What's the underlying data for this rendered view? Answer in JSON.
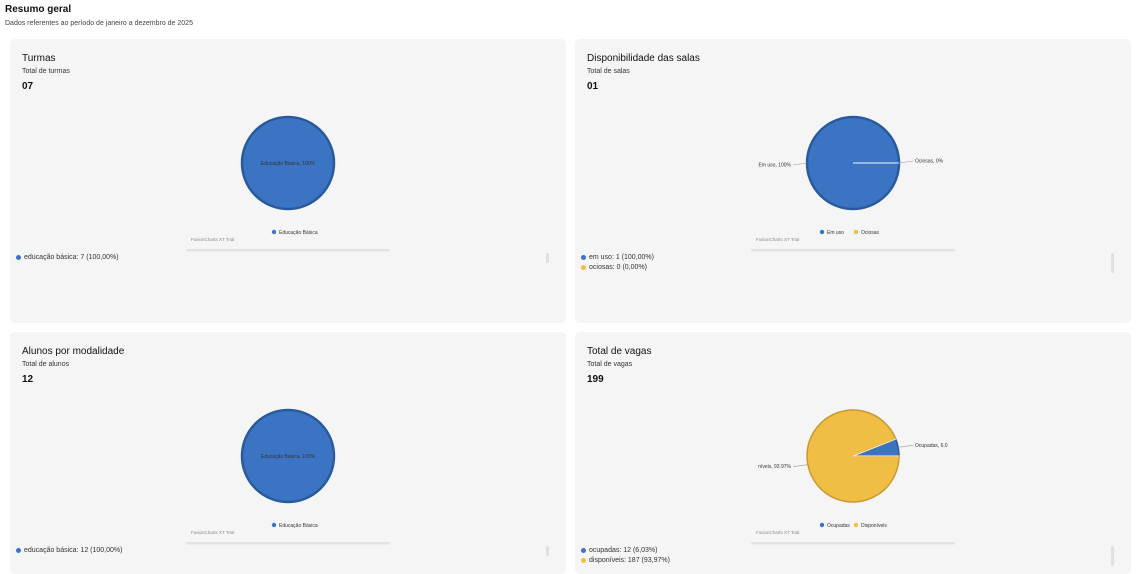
{
  "page": {
    "title": "Resumo geral",
    "subtitle": "Dados referentes ao período de janeiro a dezembro de 2025"
  },
  "colors": {
    "blue": "#3b74c3",
    "blue_dark": "#2a5a9e",
    "yellow": "#f0bd45",
    "yellow_dark": "#c79a30",
    "card_bg": "#f5f5f5"
  },
  "cards": [
    {
      "title": "Turmas",
      "subtitle": "Total de turmas",
      "value": "07",
      "chart": {
        "slices": [
          {
            "name": "Educação Básica",
            "value": 7,
            "color": "#3b74c3",
            "label": "Educação Básica, 100%"
          }
        ],
        "legend": [
          "Educação Básica"
        ],
        "trial": "FusionCharts XT Trial"
      },
      "bottom_legend": [
        {
          "text": "educação básica: 7 (100,00%)",
          "color": "#3b74c3"
        }
      ]
    },
    {
      "title": "Disponibilidade das salas",
      "subtitle": "Total de salas",
      "value": "01",
      "chart": {
        "slices": [
          {
            "name": "Em uso",
            "value": 1,
            "color": "#3b74c3",
            "label": "Em uso, 100%"
          },
          {
            "name": "Ociosas",
            "value": 0,
            "color": "#f0bd45",
            "label": "Ociosas, 0%"
          }
        ],
        "legend": [
          "Em uso",
          "Ociosas"
        ],
        "trial": "FusionCharts XT Trial"
      },
      "bottom_legend": [
        {
          "text": "em uso: 1 (100,00%)",
          "color": "#3b74c3"
        },
        {
          "text": "ociosas: 0 (0,00%)",
          "color": "#f0bd45"
        }
      ]
    },
    {
      "title": "Alunos por modalidade",
      "subtitle": "Total de alunos",
      "value": "12",
      "chart": {
        "slices": [
          {
            "name": "Educação Básica",
            "value": 12,
            "color": "#3b74c3",
            "label": "Educação Básica, 100%"
          }
        ],
        "legend": [
          "Educação Básica"
        ],
        "trial": "FusionCharts XT Trial"
      },
      "bottom_legend": [
        {
          "text": "educação básica: 12 (100,00%)",
          "color": "#3b74c3"
        }
      ]
    },
    {
      "title": "Total de vagas",
      "subtitle": "Total de vagas",
      "value": "199",
      "chart": {
        "slices": [
          {
            "name": "Ocupadas",
            "value": 12,
            "color": "#3b74c3",
            "label": "Ocupadas, 6.0"
          },
          {
            "name": "Disponíveis",
            "value": 187,
            "color": "#f0bd45",
            "label": "níveis, 93.97%"
          }
        ],
        "legend": [
          "Ocupadas",
          "Disponíveis"
        ],
        "trial": "FusionCharts XT Trial"
      },
      "bottom_legend": [
        {
          "text": "ocupadas: 12 (6,03%)",
          "color": "#3b74c3"
        },
        {
          "text": "disponíveis: 187 (93,97%)",
          "color": "#f0bd45"
        }
      ]
    }
  ]
}
